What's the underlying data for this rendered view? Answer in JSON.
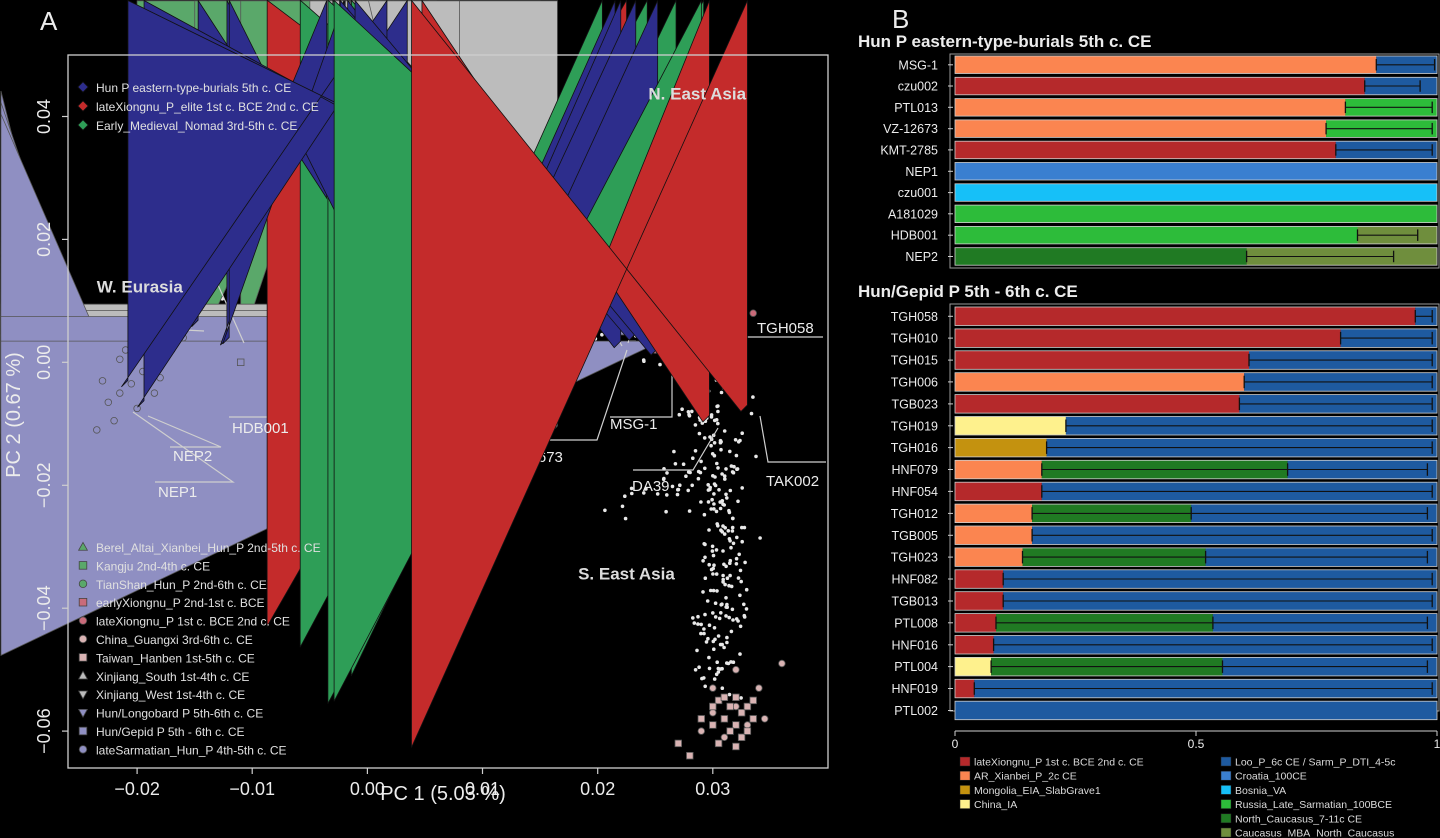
{
  "panels": {
    "a": "A",
    "b": "B"
  },
  "chart_data": [
    {
      "type": "scatter",
      "xlabel": "PC 1 (5.03 %)",
      "ylabel": "PC 2 (0.67 %)",
      "xlim": [
        -0.026,
        0.04
      ],
      "ylim": [
        -0.066,
        0.05
      ],
      "xticks": [
        {
          "v": -0.02,
          "t": "−0.02"
        },
        {
          "v": -0.01,
          "t": "−0.01"
        },
        {
          "v": 0.0,
          "t": "0.00"
        },
        {
          "v": 0.01,
          "t": "0.01"
        },
        {
          "v": 0.02,
          "t": "0.02"
        },
        {
          "v": 0.03,
          "t": "0.03"
        }
      ],
      "yticks": [
        {
          "v": 0.04,
          "t": "0.04"
        },
        {
          "v": 0.02,
          "t": "0.02"
        },
        {
          "v": 0.0,
          "t": "0.00"
        },
        {
          "v": -0.02,
          "t": "−0.02"
        },
        {
          "v": -0.04,
          "t": "−0.04"
        },
        {
          "v": -0.06,
          "t": "−0.06"
        }
      ],
      "region_labels": [
        {
          "text": "N. East Asia",
          "x": 0.0244,
          "y": 0.0428
        },
        {
          "text": "W. Eurasia",
          "x": -0.0235,
          "y": 0.0114
        },
        {
          "text": "S. East Asia",
          "x": 0.0183,
          "y": -0.0353
        }
      ],
      "legend_top": [
        {
          "label": "Hun P eastern-type-burials 5th c. CE",
          "shape": "diamond",
          "color": "#2d2d8c"
        },
        {
          "label": "lateXiongnu_P_elite 1st c. BCE 2nd c. CE",
          "shape": "diamond",
          "color": "#c42b2b"
        },
        {
          "label": "Early_Medieval_Nomad 3rd-5th c. CE",
          "shape": "diamond",
          "color": "#2e9e57"
        }
      ],
      "legend_bottom": [
        {
          "label": "Berel_Altai_Xianbei_Hun_P 2nd-5th c. CE",
          "shape": "triangle",
          "color": "#5aa86a"
        },
        {
          "label": "Kangju 2nd-4th c. CE",
          "shape": "square",
          "color": "#5aa86a"
        },
        {
          "label": "TianShan_Hun_P 2nd-6th c. CE",
          "shape": "circle",
          "color": "#5aa86a"
        },
        {
          "label": "earlyXiongnu_P 2nd-1st c. BCE",
          "shape": "square",
          "color": "#c96b7a"
        },
        {
          "label": "lateXiongnu_P 1st c. BCE 2nd c. CE",
          "shape": "circle",
          "color": "#c96b7a"
        },
        {
          "label": "China_Guangxi 3rd-6th c. CE",
          "shape": "circle",
          "color": "#d9b3b3"
        },
        {
          "label": "Taiwan_Hanben 1st-5th c. CE",
          "shape": "square",
          "color": "#d9b3b3"
        },
        {
          "label": "Xinjiang_South 1st-4th c. CE",
          "shape": "triangle",
          "color": "#bcbcbc"
        },
        {
          "label": "Xinjiang_West 1st-4th c. CE",
          "shape": "tridown",
          "color": "#bcbcbc"
        },
        {
          "label": "Hun/Longobard P 5th-6th c. CE",
          "shape": "tridown",
          "color": "#8f8fc2"
        },
        {
          "label": "Hun/Gepid P 5th - 6th c. CE",
          "shape": "square",
          "color": "#8f8fc2"
        },
        {
          "label": "lateSarmatian_Hun_P 4th-5th c. CE",
          "shape": "circle",
          "color": "#8f8fc2"
        }
      ],
      "highlighted_samples": [
        {
          "name": "A181029",
          "x": -0.0122,
          "y": 0.0028,
          "color": "#2d2d8c"
        },
        {
          "name": "czu001",
          "x": -0.0147,
          "y": 0.0058,
          "color": "#2d2d8c"
        },
        {
          "name": "HDB001",
          "x": -0.012,
          "y": 0.003,
          "color": "#2d2d8c"
        },
        {
          "name": "NEP2",
          "x": -0.0194,
          "y": -0.0073,
          "color": "#2d2d8c"
        },
        {
          "name": "NEP1",
          "x": -0.0208,
          "y": -0.004,
          "color": "#2d2d8c"
        },
        {
          "name": "KMT-2785",
          "x": -0.0015,
          "y": 0.0022,
          "color": "#2d2d8c"
        },
        {
          "name": "czu002",
          "x": 0.0215,
          "y": 0.0037,
          "color": "#2d2d8c"
        },
        {
          "name": "VZ-12673",
          "x": 0.022,
          "y": 0.0024,
          "color": "#2d2d8c"
        },
        {
          "name": "PTL013",
          "x": 0.0233,
          "y": 0.0036,
          "color": "#2d2d8c"
        },
        {
          "name": "MSG-1",
          "x": 0.0252,
          "y": 0.0012,
          "color": "#2d2d8c"
        },
        {
          "name": "TGH058",
          "x": 0.029,
          "y": 0.0046,
          "color": "#2e9e57"
        },
        {
          "name": "DA39",
          "x": 0.0297,
          "y": -0.0097,
          "color": "#c42b2b"
        },
        {
          "name": "TAK002",
          "x": 0.033,
          "y": -0.008,
          "color": "#c42b2b"
        }
      ],
      "extra_marks": [
        {
          "x": 0.0225,
          "y": 0.0155,
          "color": "#c42b2b"
        },
        {
          "x": 0.0243,
          "y": 0.0101,
          "color": "#2e9e57"
        },
        {
          "x": 0.0204,
          "y": 0.0048,
          "color": "#2e9e57"
        },
        {
          "x": 0.0292,
          "y": 0.0056,
          "color": "#2e9e57"
        },
        {
          "x": 0.0268,
          "y": 0.0018,
          "color": "#2e9e57"
        }
      ]
    },
    {
      "type": "stacked-bar",
      "orientation": "horizontal",
      "xlim": [
        0,
        1
      ],
      "xticks": [
        {
          "v": 0,
          "t": "0"
        },
        {
          "v": 0.5,
          "t": "0.5"
        },
        {
          "v": 1,
          "t": "1"
        }
      ],
      "components": [
        {
          "key": "lx",
          "label": "lateXiongnu_P 1st c. BCE 2nd c. CE",
          "color": "#b5292b"
        },
        {
          "key": "ar",
          "label": "AR_Xianbei_P_2c CE",
          "color": "#fb8550"
        },
        {
          "key": "mo",
          "label": "Mongolia_EIA_SlabGrave1",
          "color": "#c4920f"
        },
        {
          "key": "ch",
          "label": "China_IA",
          "color": "#fef18d"
        },
        {
          "key": "lo",
          "label": "Loo_P_6c CE / Sarm_P_DTI_4-5c",
          "color": "#1e5aa0"
        },
        {
          "key": "cr",
          "label": "Croatia_100CE",
          "color": "#3a7fd0"
        },
        {
          "key": "bo",
          "label": "Bosnia_VA",
          "color": "#16c0f8"
        },
        {
          "key": "ru",
          "label": "Russia_Late_Sarmatian_100BCE",
          "color": "#2dbc3a"
        },
        {
          "key": "nc",
          "label": "North_Caucasus_7-11c CE",
          "color": "#207a23"
        },
        {
          "key": "ca",
          "label": "Caucasus_MBA_North_Caucasus",
          "color": "#6f8e3d"
        }
      ],
      "groups": [
        {
          "title": "Hun P eastern-type-burials 5th c. CE",
          "rows": [
            {
              "label": "MSG-1",
              "segs": [
                [
                  "ar",
                  0.874
                ],
                [
                  "lo",
                  0.126
                ]
              ],
              "err": [
                0.874,
                0.995
              ]
            },
            {
              "label": "czu002",
              "segs": [
                [
                  "lx",
                  0.85
                ],
                [
                  "lo",
                  0.15
                ]
              ],
              "err": [
                0.85,
                0.965
              ]
            },
            {
              "label": "PTL013",
              "segs": [
                [
                  "ar",
                  0.81
                ],
                [
                  "ru",
                  0.19
                ]
              ],
              "err": [
                0.81,
                0.99
              ]
            },
            {
              "label": "VZ-12673",
              "segs": [
                [
                  "ar",
                  0.77
                ],
                [
                  "ru",
                  0.23
                ]
              ],
              "err": [
                0.77,
                0.99
              ]
            },
            {
              "label": "KMT-2785",
              "segs": [
                [
                  "lx",
                  0.79
                ],
                [
                  "lo",
                  0.21
                ]
              ],
              "err": [
                0.79,
                0.99
              ]
            },
            {
              "label": "NEP1",
              "segs": [
                [
                  "cr",
                  1.0
                ]
              ],
              "err": null
            },
            {
              "label": "czu001",
              "segs": [
                [
                  "bo",
                  1.0
                ]
              ],
              "err": null
            },
            {
              "label": "A181029",
              "segs": [
                [
                  "ru",
                  1.0
                ]
              ],
              "err": null
            },
            {
              "label": "HDB001",
              "segs": [
                [
                  "ru",
                  0.835
                ],
                [
                  "ca",
                  0.165
                ]
              ],
              "err": [
                0.835,
                0.96
              ]
            },
            {
              "label": "NEP2",
              "segs": [
                [
                  "nc",
                  0.605
                ],
                [
                  "ca",
                  0.395
                ]
              ],
              "err": [
                0.605,
                0.91
              ]
            }
          ]
        },
        {
          "title": "Hun/Gepid P 5th - 6th c. CE",
          "rows": [
            {
              "label": "TGH058",
              "segs": [
                [
                  "lx",
                  0.955
                ],
                [
                  "lo",
                  0.045
                ]
              ],
              "err": [
                0.955,
                0.99
              ]
            },
            {
              "label": "TGH010",
              "segs": [
                [
                  "lx",
                  0.8
                ],
                [
                  "lo",
                  0.2
                ]
              ],
              "err": [
                0.8,
                0.99
              ]
            },
            {
              "label": "TGH015",
              "segs": [
                [
                  "lx",
                  0.61
                ],
                [
                  "lo",
                  0.39
                ]
              ],
              "err": [
                0.61,
                0.99
              ]
            },
            {
              "label": "TGH006",
              "segs": [
                [
                  "ar",
                  0.6
                ],
                [
                  "lo",
                  0.4
                ]
              ],
              "err": [
                0.6,
                0.99
              ]
            },
            {
              "label": "TGB023",
              "segs": [
                [
                  "lx",
                  0.59
                ],
                [
                  "lo",
                  0.41
                ]
              ],
              "err": [
                0.59,
                0.99
              ]
            },
            {
              "label": "TGH019",
              "segs": [
                [
                  "ch",
                  0.23
                ],
                [
                  "lo",
                  0.77
                ]
              ],
              "err": [
                0.23,
                0.99
              ]
            },
            {
              "label": "TGH016",
              "segs": [
                [
                  "mo",
                  0.19
                ],
                [
                  "lo",
                  0.81
                ]
              ],
              "err": [
                0.19,
                0.99
              ]
            },
            {
              "label": "HNF079",
              "segs": [
                [
                  "ar",
                  0.18
                ],
                [
                  "nc",
                  0.51
                ],
                [
                  "lo",
                  0.31
                ]
              ],
              "err": [
                0.18,
                0.69,
                0.98
              ]
            },
            {
              "label": "HNF054",
              "segs": [
                [
                  "lx",
                  0.18
                ],
                [
                  "lo",
                  0.82
                ]
              ],
              "err": [
                0.18,
                0.99
              ]
            },
            {
              "label": "TGH012",
              "segs": [
                [
                  "ar",
                  0.16
                ],
                [
                  "nc",
                  0.33
                ],
                [
                  "lo",
                  0.51
                ]
              ],
              "err": [
                0.16,
                0.49,
                0.98
              ]
            },
            {
              "label": "TGB005",
              "segs": [
                [
                  "ar",
                  0.16
                ],
                [
                  "lo",
                  0.84
                ]
              ],
              "err": [
                0.16,
                0.99
              ]
            },
            {
              "label": "TGH023",
              "segs": [
                [
                  "ar",
                  0.14
                ],
                [
                  "nc",
                  0.38
                ],
                [
                  "lo",
                  0.48
                ]
              ],
              "err": [
                0.14,
                0.52,
                0.98
              ]
            },
            {
              "label": "HNF082",
              "segs": [
                [
                  "lx",
                  0.1
                ],
                [
                  "lo",
                  0.9
                ]
              ],
              "err": [
                0.1,
                0.99
              ]
            },
            {
              "label": "TGB013",
              "segs": [
                [
                  "lx",
                  0.1
                ],
                [
                  "lo",
                  0.9
                ]
              ],
              "err": [
                0.1,
                0.99
              ]
            },
            {
              "label": "PTL008",
              "segs": [
                [
                  "lx",
                  0.085
                ],
                [
                  "nc",
                  0.45
                ],
                [
                  "lo",
                  0.465
                ]
              ],
              "err": [
                0.085,
                0.535,
                0.98
              ]
            },
            {
              "label": "HNF016",
              "segs": [
                [
                  "lx",
                  0.08
                ],
                [
                  "lo",
                  0.92
                ]
              ],
              "err": [
                0.08,
                0.99
              ]
            },
            {
              "label": "PTL004",
              "segs": [
                [
                  "ch",
                  0.075
                ],
                [
                  "nc",
                  0.48
                ],
                [
                  "lo",
                  0.445
                ]
              ],
              "err": [
                0.075,
                0.555,
                0.98
              ]
            },
            {
              "label": "HNF019",
              "segs": [
                [
                  "lx",
                  0.04
                ],
                [
                  "lo",
                  0.96
                ]
              ],
              "err": [
                0.04,
                0.99
              ]
            },
            {
              "label": "PTL002",
              "segs": [
                [
                  "lo",
                  1.0
                ]
              ],
              "err": null
            }
          ]
        }
      ]
    }
  ]
}
